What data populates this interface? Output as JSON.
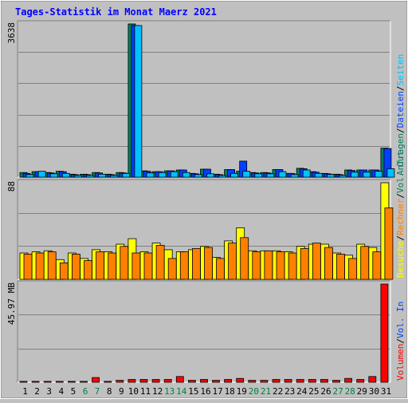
{
  "title": "Tages-Statistik im Monat Maerz 2021",
  "colors": {
    "background": "#c0c0c0",
    "title": "#0000ff",
    "anfragen": "#008060",
    "dateien": "#0040ff",
    "seiten": "#00c0ff",
    "besuche": "#ffff00",
    "rechner": "#ff8000",
    "volumen": "#ff0000",
    "weekend": "#008040",
    "day": "#000000",
    "grid": "#808080"
  },
  "chart_data": [
    {
      "type": "bar",
      "panel": "top",
      "ymax_label": "3638",
      "ylim": [
        0,
        3638
      ],
      "grid": true,
      "legend_right": [
        {
          "name": "Anfragen",
          "color": "#008060"
        },
        {
          "name": "Dateien",
          "color": "#0040ff"
        },
        {
          "name": "Seiten",
          "color": "#00c0ff"
        }
      ],
      "categories": [
        "1",
        "2",
        "3",
        "4",
        "5",
        "6",
        "7",
        "8",
        "9",
        "10",
        "11",
        "12",
        "13",
        "14",
        "15",
        "16",
        "17",
        "18",
        "19",
        "20",
        "21",
        "22",
        "23",
        "24",
        "25",
        "26",
        "27",
        "28",
        "29",
        "30",
        "31"
      ],
      "series": [
        {
          "name": "Anfragen",
          "color": "#008060",
          "values": [
            110,
            130,
            110,
            140,
            70,
            70,
            110,
            70,
            110,
            3638,
            150,
            130,
            150,
            170,
            90,
            190,
            70,
            180,
            140,
            110,
            110,
            180,
            90,
            210,
            130,
            90,
            70,
            170,
            170,
            170,
            690
          ]
        },
        {
          "name": "Dateien",
          "color": "#0040ff",
          "values": [
            90,
            130,
            100,
            130,
            60,
            60,
            100,
            60,
            100,
            3600,
            140,
            130,
            150,
            170,
            80,
            190,
            60,
            180,
            380,
            100,
            100,
            180,
            90,
            200,
            120,
            80,
            60,
            160,
            170,
            170,
            680
          ]
        },
        {
          "name": "Seiten",
          "color": "#00c0ff",
          "values": [
            60,
            140,
            80,
            90,
            40,
            40,
            70,
            40,
            90,
            3600,
            100,
            110,
            130,
            110,
            60,
            80,
            40,
            90,
            140,
            80,
            80,
            130,
            60,
            170,
            90,
            60,
            40,
            120,
            120,
            140,
            200
          ]
        }
      ]
    },
    {
      "type": "bar",
      "panel": "middle",
      "ymax_label": "88",
      "ylim": [
        0,
        88
      ],
      "grid": true,
      "legend_right": [
        {
          "name": "Besuche",
          "color": "#ffff00"
        },
        {
          "name": "Rechner",
          "color": "#ff8000"
        },
        {
          "name": "Vol. Out",
          "color": "#008060"
        }
      ],
      "categories": [
        "1",
        "2",
        "3",
        "4",
        "5",
        "6",
        "7",
        "8",
        "9",
        "10",
        "11",
        "12",
        "13",
        "14",
        "15",
        "16",
        "17",
        "18",
        "19",
        "20",
        "21",
        "22",
        "23",
        "24",
        "25",
        "26",
        "27",
        "28",
        "29",
        "30",
        "31"
      ],
      "series": [
        {
          "name": "Besuche",
          "color": "#ffff00",
          "values": [
            24,
            25,
            26,
            18,
            24,
            19,
            27,
            25,
            32,
            37,
            25,
            33,
            27,
            25,
            27,
            30,
            20,
            35,
            47,
            26,
            26,
            26,
            25,
            30,
            32,
            32,
            24,
            22,
            32,
            29,
            88
          ]
        },
        {
          "name": "Rechner",
          "color": "#ff8000",
          "values": [
            23,
            24,
            25,
            15,
            23,
            17,
            25,
            24,
            30,
            24,
            24,
            31,
            19,
            25,
            28,
            29,
            19,
            33,
            38,
            25,
            26,
            25,
            24,
            28,
            33,
            29,
            23,
            19,
            30,
            25,
            65
          ]
        }
      ]
    },
    {
      "type": "bar",
      "panel": "bottom",
      "ymax_label": "45.97 MB",
      "ylim": [
        0,
        45.97
      ],
      "grid": true,
      "legend_right": [
        {
          "name": "Volumen",
          "color": "#ff0000"
        },
        {
          "name": "Vol. In",
          "color": "#0040ff"
        }
      ],
      "categories": [
        "1",
        "2",
        "3",
        "4",
        "5",
        "6",
        "7",
        "8",
        "9",
        "10",
        "11",
        "12",
        "13",
        "14",
        "15",
        "16",
        "17",
        "18",
        "19",
        "20",
        "21",
        "22",
        "23",
        "24",
        "25",
        "26",
        "27",
        "28",
        "29",
        "30",
        "31"
      ],
      "series": [
        {
          "name": "Volumen",
          "color": "#ff0000",
          "values": [
            0.4,
            0.4,
            0.4,
            0.4,
            0.4,
            0.4,
            2.2,
            0.4,
            0.9,
            1.3,
            1.3,
            1.3,
            1.3,
            2.7,
            0.9,
            1.3,
            0.9,
            1.3,
            1.8,
            0.9,
            0.9,
            1.3,
            1.3,
            1.3,
            1.3,
            1.3,
            0.9,
            1.8,
            1.3,
            2.7,
            45.97
          ]
        }
      ]
    }
  ],
  "x_axis": {
    "labels": [
      "1",
      "2",
      "3",
      "4",
      "5",
      "6",
      "7",
      "8",
      "9",
      "10",
      "11",
      "12",
      "13",
      "14",
      "15",
      "16",
      "17",
      "18",
      "19",
      "20",
      "21",
      "22",
      "23",
      "24",
      "25",
      "26",
      "27",
      "28",
      "29",
      "30",
      "31"
    ],
    "weekend": [
      false,
      false,
      false,
      false,
      false,
      true,
      true,
      false,
      false,
      false,
      false,
      false,
      true,
      true,
      false,
      false,
      false,
      false,
      false,
      true,
      true,
      false,
      false,
      false,
      false,
      false,
      true,
      true,
      false,
      false,
      false
    ]
  }
}
